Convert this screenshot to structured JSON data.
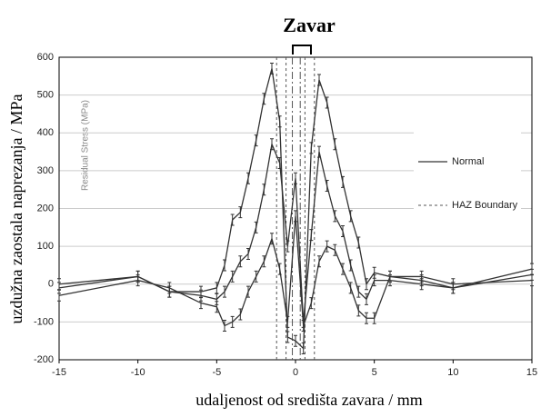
{
  "chart_data": {
    "type": "line",
    "title": "Zavar",
    "x_label": "udaljenost od središta zavara / mm",
    "y_label": "uzdužna zaostala naprezanja / MPa",
    "inner_label": "Residual Stress (MPa)",
    "x": [
      -15,
      -10,
      -8,
      -6,
      -5,
      -4.5,
      -4,
      -3.5,
      -3,
      -2.5,
      -2,
      -1.5,
      -1,
      -0.5,
      0,
      0.5,
      1,
      1.5,
      2,
      2.5,
      3,
      3.5,
      4,
      4.5,
      5,
      6,
      8,
      10,
      15
    ],
    "series": [
      {
        "color": "#333333",
        "values": [
          0,
          20,
          -20,
          -20,
          -10,
          50,
          170,
          190,
          280,
          380,
          490,
          570,
          430,
          -140,
          -150,
          -170,
          360,
          540,
          480,
          370,
          270,
          180,
          110,
          0,
          30,
          20,
          10,
          -10,
          40
        ]
      },
      {
        "color": "#333333",
        "values": [
          -10,
          20,
          -20,
          -30,
          -40,
          -20,
          20,
          60,
          80,
          150,
          250,
          370,
          320,
          100,
          280,
          -100,
          130,
          350,
          260,
          180,
          140,
          50,
          -20,
          -40,
          10,
          10,
          0,
          -10,
          25
        ]
      },
      {
        "color": "#333333",
        "values": [
          -30,
          10,
          -10,
          -50,
          -60,
          -110,
          -100,
          -80,
          -20,
          20,
          60,
          120,
          40,
          -100,
          180,
          -110,
          -50,
          60,
          100,
          90,
          40,
          -10,
          -70,
          -90,
          -90,
          20,
          20,
          0,
          10
        ]
      }
    ],
    "haz_lines": [
      -1.2,
      -0.6,
      0.6,
      1.2
    ],
    "center_lines": [
      -0.2,
      0.3
    ],
    "legend": [
      "Normal",
      "HAZ Boundary"
    ],
    "xlim": [
      -15,
      15
    ],
    "xticks": [
      -15,
      -10,
      -5,
      0,
      5,
      10,
      15
    ],
    "ylim": [
      -200,
      600
    ],
    "yticks": [
      -200,
      -100,
      0,
      100,
      200,
      300,
      400,
      500,
      600
    ],
    "grid": true
  }
}
